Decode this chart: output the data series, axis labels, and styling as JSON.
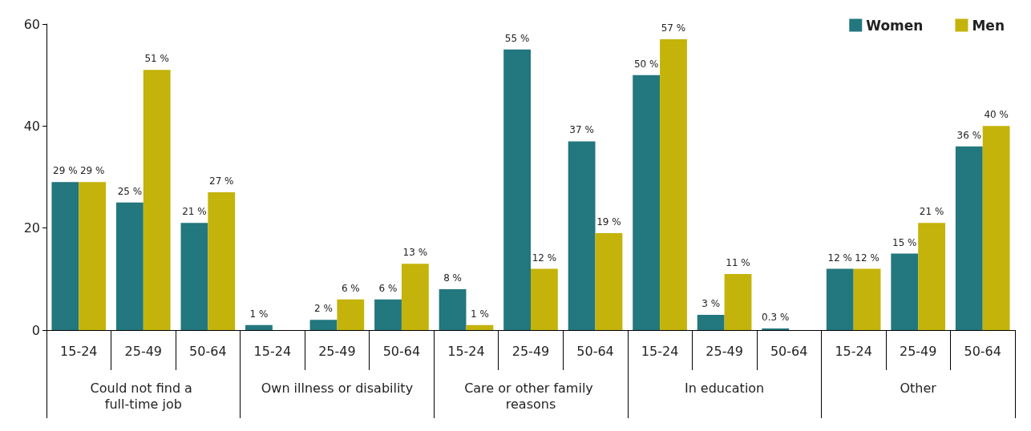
{
  "chart_data": {
    "type": "bar",
    "categories": [
      "15-24",
      "25-49",
      "50-64",
      "15-24",
      "25-49",
      "50-64",
      "15-24",
      "25-49",
      "50-64",
      "15-24",
      "25-49",
      "50-64",
      "15-24",
      "25-49",
      "50-64"
    ],
    "annotations": [
      "Could not find a full-time job",
      "Own illness or disability",
      "Care or other family reasons",
      "In education",
      "Other"
    ],
    "series": [
      {
        "name": "Women",
        "color": "#23777e",
        "values": [
          29,
          25,
          21,
          1,
          2,
          6,
          8,
          55,
          37,
          50,
          3,
          0.3,
          12,
          15,
          36
        ],
        "value_labels": [
          "29 %",
          "25 %",
          "21 %",
          "1 %",
          "2 %",
          "6 %",
          "8 %",
          "55 %",
          "37 %",
          "50 %",
          "3 %",
          "0.3 %",
          "12 %",
          "15 %",
          "36 %"
        ]
      },
      {
        "name": "Men",
        "color": "#c4b30a",
        "values": [
          29,
          51,
          27,
          null,
          6,
          13,
          1,
          12,
          19,
          57,
          11,
          null,
          12,
          21,
          40
        ],
        "value_labels": [
          "29 %",
          "51 %",
          "27 %",
          null,
          "6 %",
          "13 %",
          "1 %",
          "12 %",
          "19 %",
          "57 %",
          "11 %",
          null,
          "12 %",
          "21 %",
          "40 %"
        ]
      }
    ],
    "ylim": [
      0,
      60
    ],
    "yticks": [
      0,
      20,
      40,
      60
    ],
    "grid": false,
    "legend": "top right"
  }
}
